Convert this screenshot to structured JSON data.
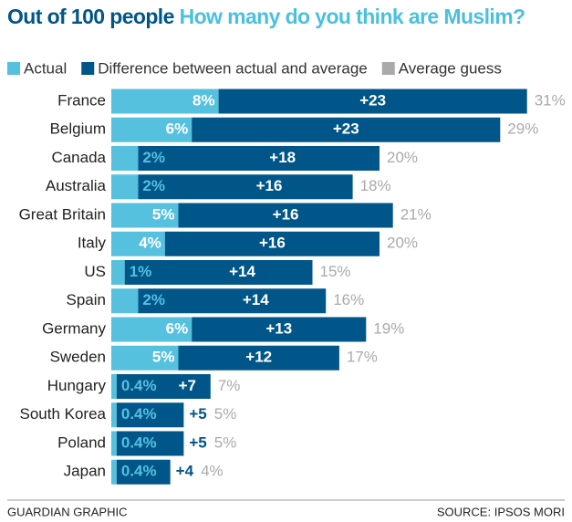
{
  "chart_data": {
    "type": "bar",
    "orientation": "horizontal",
    "stacked": true,
    "title": "Out of 100 people",
    "subtitle": "How many do you think are Muslim?",
    "categories": [
      "France",
      "Belgium",
      "Canada",
      "Australia",
      "Great Britain",
      "Italy",
      "US",
      "Spain",
      "Germany",
      "Sweden",
      "Hungary",
      "South Korea",
      "Poland",
      "Japan"
    ],
    "series": [
      {
        "name": "Actual",
        "color": "#55c1df",
        "values": [
          8,
          6,
          2,
          2,
          5,
          4,
          1,
          2,
          6,
          5,
          0.4,
          0.4,
          0.4,
          0.4
        ],
        "value_labels": [
          "8%",
          "6%",
          "2%",
          "2%",
          "5%",
          "4%",
          "1%",
          "2%",
          "6%",
          "5%",
          "0.4%",
          "0.4%",
          "0.4%",
          "0.4%"
        ]
      },
      {
        "name": "Difference between actual and average",
        "color": "#005689",
        "values": [
          23,
          23,
          18,
          16,
          16,
          16,
          14,
          14,
          13,
          12,
          7,
          5,
          5,
          4
        ],
        "value_labels": [
          "+23",
          "+23",
          "+18",
          "+16",
          "+16",
          "+16",
          "+14",
          "+14",
          "+13",
          "+12",
          "+7",
          "+5",
          "+5",
          "+4"
        ]
      },
      {
        "name": "Average guess",
        "color": "#aaaaaa",
        "values": [
          31,
          29,
          20,
          18,
          21,
          20,
          15,
          16,
          19,
          17,
          7,
          5,
          5,
          4
        ],
        "value_labels": [
          "31%",
          "29%",
          "20%",
          "18%",
          "21%",
          "20%",
          "15%",
          "16%",
          "19%",
          "17%",
          "7%",
          "5%",
          "5%",
          "4%"
        ]
      }
    ],
    "footer_left": "GUARDIAN GRAPHIC",
    "footer_right": "SOURCE: IPSOS MORI"
  }
}
